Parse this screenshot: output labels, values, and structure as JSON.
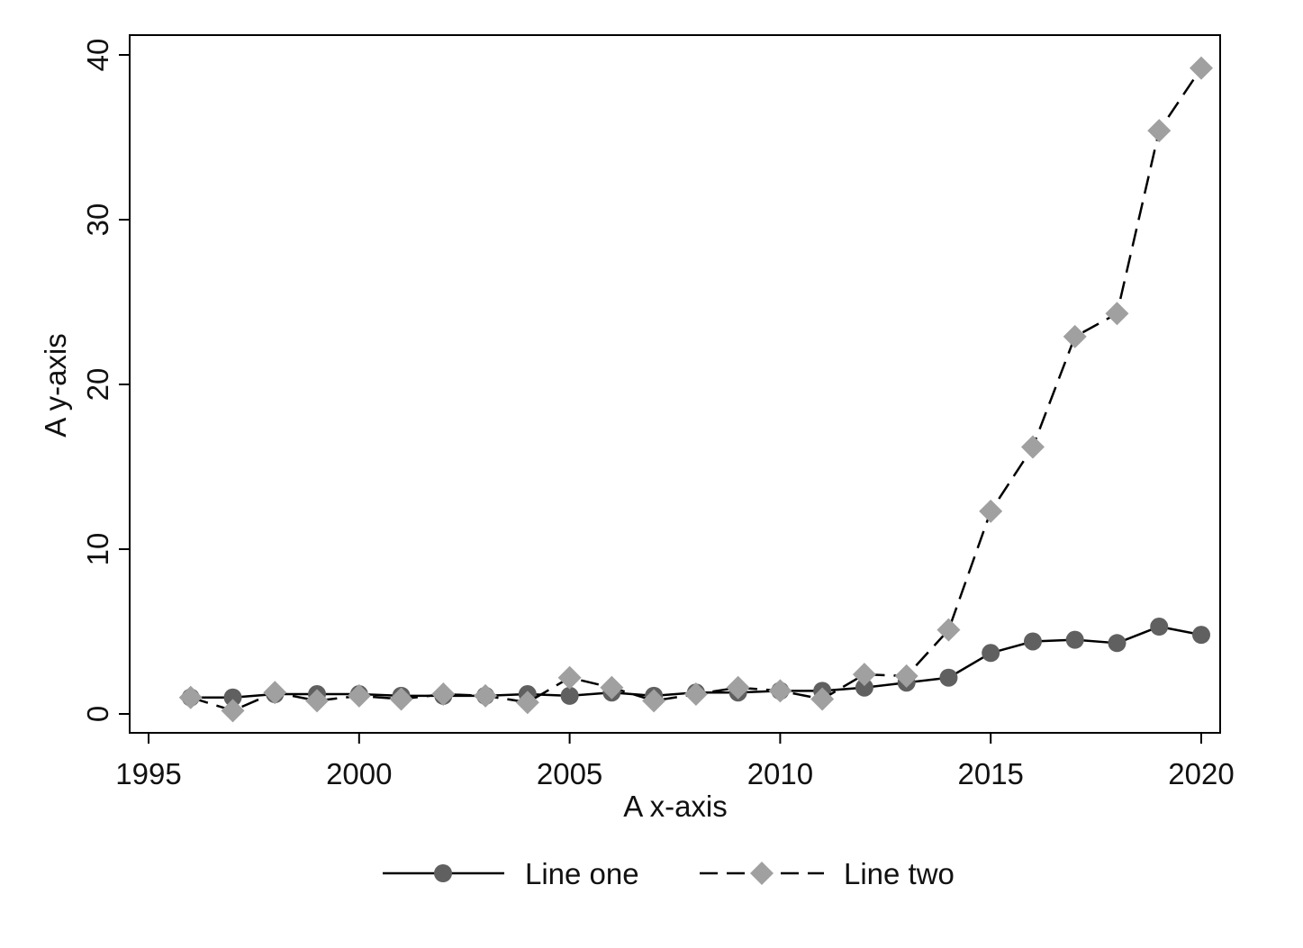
{
  "chart_data": {
    "type": "line",
    "title": "",
    "xlabel": "A x-axis",
    "ylabel": "A y-axis",
    "xlim": [
      1994,
      2021
    ],
    "ylim": [
      -1.2,
      41.5
    ],
    "x_ticks": [
      1995,
      2000,
      2005,
      2010,
      2015,
      2020
    ],
    "y_ticks": [
      0,
      10,
      20,
      30,
      40
    ],
    "grid": false,
    "legend_position": "bottom",
    "x": [
      1996,
      1997,
      1998,
      1999,
      2000,
      2001,
      2002,
      2003,
      2004,
      2005,
      2006,
      2007,
      2008,
      2009,
      2010,
      2011,
      2012,
      2013,
      2014,
      2015,
      2016,
      2017,
      2018,
      2019,
      2020
    ],
    "series": [
      {
        "name": "Line one",
        "line_style": "solid",
        "marker": "circle",
        "color": "#606060",
        "values": [
          1.0,
          1.0,
          1.2,
          1.2,
          1.2,
          1.1,
          1.1,
          1.1,
          1.2,
          1.1,
          1.3,
          1.1,
          1.3,
          1.3,
          1.4,
          1.4,
          1.6,
          1.9,
          2.2,
          3.7,
          4.4,
          4.5,
          4.3,
          5.3,
          4.8
        ]
      },
      {
        "name": "Line two",
        "line_style": "dashed",
        "marker": "diamond",
        "color": "#a0a0a0",
        "values": [
          1.0,
          0.2,
          1.3,
          0.8,
          1.1,
          0.9,
          1.2,
          1.1,
          0.7,
          2.2,
          1.6,
          0.8,
          1.2,
          1.6,
          1.4,
          0.9,
          2.4,
          2.3,
          5.1,
          12.3,
          16.2,
          22.9,
          24.3,
          35.4,
          39.2
        ]
      }
    ]
  }
}
